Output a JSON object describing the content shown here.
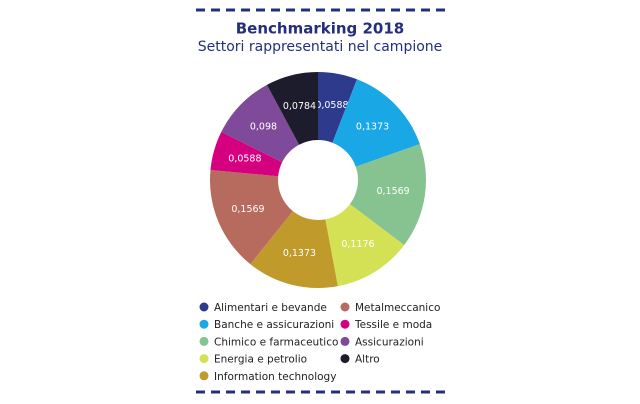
{
  "chart_data": {
    "type": "pie",
    "title": "Benchmarking 2018",
    "subtitle": "Settori rappresentati nel campione",
    "categories": [
      "Alimentari e bevande",
      "Banche e assicurazioni",
      "Chimico e farmaceutico",
      "Energia e petrolio",
      "Information technology",
      "Metalmeccanico",
      "Tessile e moda",
      "Assicurazioni",
      "Altro"
    ],
    "values": [
      0.0588,
      0.1373,
      0.1569,
      0.1176,
      0.1373,
      0.1569,
      0.0588,
      0.098,
      0.0784
    ],
    "value_labels": [
      "0,0588",
      "0,1373",
      "0,1569",
      "0,1176",
      "0,1373",
      "0,1569",
      "0,0588",
      "0,098",
      "0,0784"
    ],
    "colors": [
      "#2e3a8c",
      "#1aa7e6",
      "#86c391",
      "#d4e155",
      "#c09a2a",
      "#b76a5e",
      "#d4007f",
      "#7e4a99",
      "#1c1c2c"
    ],
    "legend": "bottom"
  }
}
